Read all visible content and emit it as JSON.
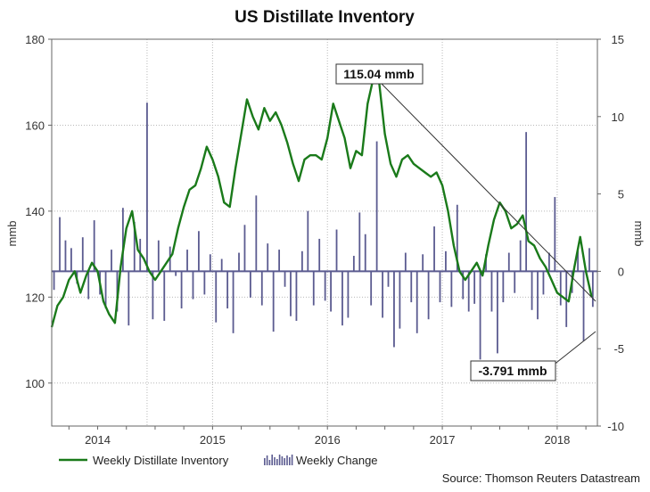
{
  "chart_data": {
    "type": "line+bar",
    "title": "US Distillate Inventory",
    "left_axis": {
      "label": "mmb",
      "min": 90,
      "max": 180,
      "ticks": [
        100,
        120,
        140,
        160,
        180
      ]
    },
    "right_axis": {
      "label": "mmb",
      "min": -10,
      "max": 15,
      "ticks": [
        15,
        10,
        5,
        0,
        -5,
        -10
      ]
    },
    "x_axis": {
      "start": 2013.6,
      "end": 2018.35,
      "labels": [
        "2014",
        "2015",
        "2016",
        "2017",
        "2018"
      ],
      "label_positions": [
        2014.0,
        2015.0,
        2016.0,
        2017.0,
        2018.0
      ],
      "year_lines": [
        2014.43,
        2015.0,
        2016.0,
        2017.0,
        2018.0
      ]
    },
    "line_series": {
      "name": "Weekly Distillate Inventory",
      "color": "#1a7a1a",
      "axis": "left",
      "x": [
        2013.6,
        2013.65,
        2013.7,
        2013.75,
        2013.8,
        2013.85,
        2013.9,
        2013.95,
        2014.0,
        2014.05,
        2014.1,
        2014.15,
        2014.2,
        2014.25,
        2014.3,
        2014.35,
        2014.4,
        2014.45,
        2014.5,
        2014.55,
        2014.6,
        2014.65,
        2014.7,
        2014.75,
        2014.8,
        2014.85,
        2014.9,
        2014.95,
        2015.0,
        2015.05,
        2015.1,
        2015.15,
        2015.2,
        2015.25,
        2015.3,
        2015.35,
        2015.4,
        2015.45,
        2015.5,
        2015.55,
        2015.6,
        2015.65,
        2015.7,
        2015.75,
        2015.8,
        2015.85,
        2015.9,
        2015.95,
        2016.0,
        2016.05,
        2016.1,
        2016.15,
        2016.2,
        2016.25,
        2016.3,
        2016.35,
        2016.4,
        2016.45,
        2016.5,
        2016.55,
        2016.6,
        2016.65,
        2016.7,
        2016.75,
        2016.8,
        2016.85,
        2016.9,
        2016.95,
        2017.0,
        2017.05,
        2017.1,
        2017.15,
        2017.2,
        2017.25,
        2017.3,
        2017.35,
        2017.4,
        2017.45,
        2017.5,
        2017.55,
        2017.6,
        2017.65,
        2017.7,
        2017.75,
        2017.8,
        2017.85,
        2017.9,
        2017.95,
        2018.0,
        2018.05,
        2018.1,
        2018.15,
        2018.2,
        2018.25,
        2018.3
      ],
      "y": [
        113,
        118,
        120,
        124,
        126,
        121,
        125,
        128,
        126,
        119,
        116,
        114,
        127,
        136,
        140,
        131,
        129,
        126,
        124,
        126,
        128,
        130,
        136,
        141,
        145,
        146,
        150,
        155,
        152,
        148,
        142,
        141,
        150,
        158,
        166,
        162,
        159,
        164,
        161,
        163,
        160,
        156,
        151,
        147,
        152,
        153,
        153,
        152,
        157,
        165,
        161,
        157,
        150,
        154,
        153,
        165,
        171,
        170,
        158,
        151,
        148,
        152,
        153,
        151,
        150,
        149,
        148,
        149,
        146,
        140,
        132,
        126,
        124,
        126,
        128,
        125,
        132,
        138,
        142,
        140,
        136,
        137,
        139,
        133,
        132,
        129,
        127,
        124,
        121,
        120,
        119,
        127,
        134,
        126,
        120
      ],
      "note": "values approximate"
    },
    "bar_series": {
      "name": "Weekly Change",
      "color": "#5b5b90",
      "axis": "right",
      "x": [
        2013.62,
        2013.67,
        2013.72,
        2013.77,
        2013.82,
        2013.87,
        2013.92,
        2013.97,
        2014.02,
        2014.07,
        2014.12,
        2014.17,
        2014.22,
        2014.27,
        2014.32,
        2014.37,
        2014.43,
        2014.48,
        2014.53,
        2014.58,
        2014.63,
        2014.68,
        2014.73,
        2014.78,
        2014.83,
        2014.88,
        2014.93,
        2014.98,
        2015.03,
        2015.08,
        2015.13,
        2015.18,
        2015.23,
        2015.28,
        2015.33,
        2015.38,
        2015.43,
        2015.48,
        2015.53,
        2015.58,
        2015.63,
        2015.68,
        2015.73,
        2015.78,
        2015.83,
        2015.88,
        2015.93,
        2015.98,
        2016.03,
        2016.08,
        2016.13,
        2016.18,
        2016.23,
        2016.28,
        2016.33,
        2016.38,
        2016.43,
        2016.48,
        2016.53,
        2016.58,
        2016.63,
        2016.68,
        2016.73,
        2016.78,
        2016.83,
        2016.88,
        2016.93,
        2016.98,
        2017.03,
        2017.08,
        2017.13,
        2017.18,
        2017.23,
        2017.28,
        2017.33,
        2017.38,
        2017.43,
        2017.48,
        2017.53,
        2017.58,
        2017.63,
        2017.68,
        2017.73,
        2017.78,
        2017.83,
        2017.88,
        2017.93,
        2017.98,
        2018.03,
        2018.08,
        2018.13,
        2018.18,
        2018.23,
        2018.28,
        2018.31
      ],
      "values": [
        -1.2,
        3.5,
        2.0,
        1.5,
        -0.8,
        2.2,
        -1.8,
        3.3,
        -1.5,
        -2.4,
        1.4,
        -2.6,
        4.1,
        -3.5,
        3.2,
        2.1,
        10.9,
        -3.1,
        2.0,
        -3.2,
        1.6,
        -0.3,
        -2.4,
        1.4,
        -1.8,
        2.6,
        -1.5,
        1.1,
        -3.3,
        0.8,
        -2.4,
        -4.0,
        1.2,
        3.0,
        -1.7,
        4.9,
        -2.2,
        1.8,
        -3.9,
        1.4,
        -1.0,
        -2.9,
        -3.2,
        1.3,
        3.9,
        -2.2,
        2.1,
        -1.9,
        -2.6,
        2.7,
        -3.5,
        -3.0,
        1.0,
        3.8,
        2.4,
        -2.2,
        8.4,
        -3.0,
        -1.0,
        -4.9,
        -3.7,
        1.2,
        -2.0,
        -4.0,
        1.1,
        -3.1,
        2.9,
        -2.0,
        1.3,
        -2.3,
        4.3,
        -1.8,
        -2.6,
        -2.1,
        -5.7,
        1.1,
        -2.6,
        -5.3,
        -2.0,
        1.2,
        -1.4,
        2.0,
        9.0,
        -2.5,
        -3.1,
        -1.5,
        1.2,
        4.8,
        -2.2,
        -3.6,
        -1.4,
        1.4,
        -4.5,
        1.5,
        -2.3
      ],
      "note": "values approximate"
    },
    "annotations": [
      {
        "text": "115.04 mmb"
      },
      {
        "text": "-3.791 mmb"
      }
    ],
    "legend": {
      "line_label": "Weekly Distillate Inventory",
      "bar_label": "Weekly Change"
    },
    "source": "Source: Thomson Reuters Datastream"
  }
}
